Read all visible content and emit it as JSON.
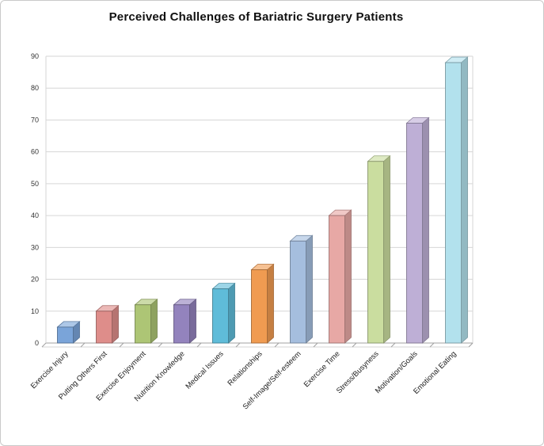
{
  "chart_data": {
    "type": "bar",
    "style": "3d-column",
    "title": "Perceived Challenges of Bariatric Surgery Patients",
    "categories": [
      "Exercise Injury",
      "Putting Others First",
      "Exercise Enjoyment",
      "Nutrition Knowledge",
      "Medical Issues",
      "Relationships",
      "Self-Image/Self-esteem",
      "Exercise Time",
      "Stress/Busyness",
      "Motivation/Goals",
      "Emotional Eating"
    ],
    "values": [
      5,
      10,
      12,
      12,
      17,
      23,
      32,
      40,
      57,
      69,
      88
    ],
    "bar_colors": [
      "#7aa4d9",
      "#de8d8a",
      "#adc575",
      "#9383bd",
      "#5fbcd9",
      "#f09b51",
      "#a5bede",
      "#e7a8a5",
      "#cadd9f",
      "#beafd6",
      "#b2e1ed"
    ],
    "xlabel": "",
    "ylabel": "",
    "ylim": [
      0,
      90
    ],
    "yticks": [
      0,
      10,
      20,
      30,
      40,
      50,
      60,
      70,
      80,
      90
    ],
    "grid": true,
    "legend": "none",
    "gridline_color": "#d6d6d6",
    "axis_color": "#a0a0a0",
    "title_color": "#111111",
    "label_color": "#333333"
  }
}
